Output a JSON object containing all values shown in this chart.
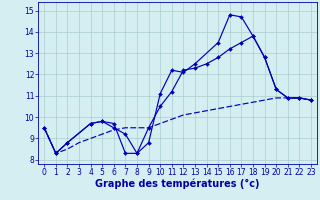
{
  "xlabel": "Graphe des températures (°c)",
  "xlim": [
    -0.5,
    23.5
  ],
  "ylim": [
    7.8,
    15.4
  ],
  "yticks": [
    8,
    9,
    10,
    11,
    12,
    13,
    14,
    15
  ],
  "xticks": [
    0,
    1,
    2,
    3,
    4,
    5,
    6,
    7,
    8,
    9,
    10,
    11,
    12,
    13,
    14,
    15,
    16,
    17,
    18,
    19,
    20,
    21,
    22,
    23
  ],
  "background_color": "#d4eef2",
  "grid_color": "#aacccc",
  "line_color": "#0000bb",
  "curve1_x": [
    0,
    1,
    2,
    4,
    5,
    6,
    7,
    8,
    9,
    10,
    11,
    12,
    13,
    15,
    16,
    17,
    18,
    19,
    20,
    21,
    22,
    23
  ],
  "curve1_y": [
    9.5,
    8.3,
    8.8,
    9.7,
    9.8,
    9.7,
    8.3,
    8.3,
    8.8,
    11.1,
    12.2,
    12.1,
    12.5,
    13.5,
    14.8,
    14.7,
    13.8,
    12.8,
    11.3,
    10.9,
    10.9,
    10.8
  ],
  "curve2_x": [
    0,
    1,
    2,
    4,
    5,
    6,
    7,
    8,
    9,
    10,
    11,
    12,
    13,
    14,
    15,
    16,
    17,
    18,
    19,
    20,
    21,
    22,
    23
  ],
  "curve2_y": [
    9.5,
    8.3,
    8.8,
    9.7,
    9.8,
    9.5,
    9.2,
    8.3,
    9.5,
    10.5,
    11.2,
    12.2,
    12.3,
    12.5,
    12.8,
    13.2,
    13.5,
    13.8,
    12.8,
    11.3,
    10.9,
    10.9,
    10.8
  ],
  "curve3_x": [
    0,
    1,
    2,
    3,
    4,
    5,
    6,
    7,
    8,
    9,
    10,
    11,
    12,
    13,
    14,
    15,
    16,
    17,
    18,
    19,
    20,
    21,
    22,
    23
  ],
  "curve3_y": [
    9.5,
    8.3,
    8.5,
    8.8,
    9.0,
    9.2,
    9.4,
    9.5,
    9.5,
    9.5,
    9.7,
    9.9,
    10.1,
    10.2,
    10.3,
    10.4,
    10.5,
    10.6,
    10.7,
    10.8,
    10.9,
    10.9,
    10.9,
    10.8
  ],
  "tick_fontsize": 5.5,
  "xlabel_fontsize": 7.0,
  "tick_color": "#0000aa",
  "lw": 0.85,
  "ms": 2.0
}
